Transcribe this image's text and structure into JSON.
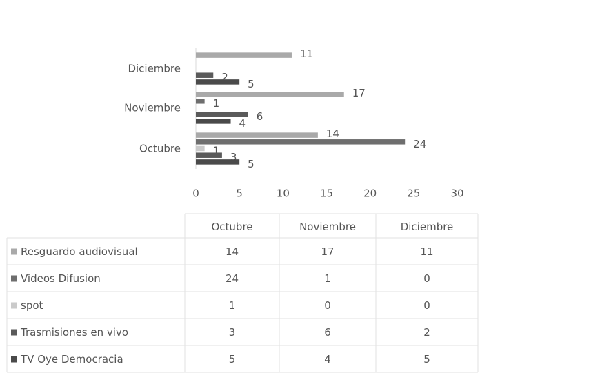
{
  "chart_data": {
    "type": "bar",
    "orientation": "horizontal",
    "categories": [
      "Octubre",
      "Noviembre",
      "Diciembre"
    ],
    "series": [
      {
        "name": "Resguardo audiovisual",
        "color": "#a9a9a9",
        "values": [
          14,
          17,
          11
        ]
      },
      {
        "name": "Videos Difusion",
        "color": "#6e6e6e",
        "values": [
          24,
          1,
          0
        ]
      },
      {
        "name": "spot",
        "color": "#cacaca",
        "values": [
          1,
          0,
          0
        ]
      },
      {
        "name": "Trasmisiones en vivo",
        "color": "#5a5a5a",
        "values": [
          3,
          6,
          2
        ]
      },
      {
        "name": "TV Oye Democracia",
        "color": "#4a4a4a",
        "values": [
          5,
          4,
          5
        ]
      }
    ],
    "xlim": [
      0,
      30
    ],
    "xticks": [
      0,
      5,
      10,
      15,
      20,
      25,
      30
    ],
    "grid": false
  }
}
